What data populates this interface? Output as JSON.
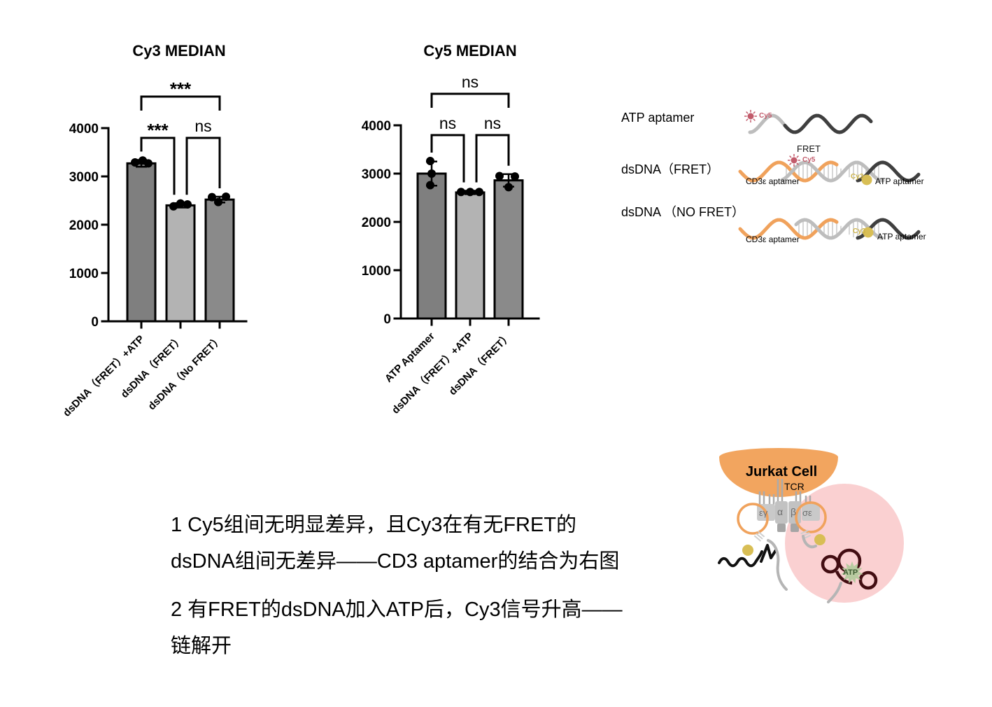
{
  "chart_data": [
    {
      "type": "bar",
      "title": "Cy3 MEDIAN",
      "categories": [
        "dsDNA（FRET）+ATP",
        "dsDNA（FRET）",
        "dsDNA（No FRET）"
      ],
      "values": [
        3270,
        2400,
        2520
      ],
      "errors": [
        70,
        45,
        60
      ],
      "points": [
        [
          3290,
          3330,
          3270
        ],
        [
          2380,
          2440,
          2420
        ],
        [
          2570,
          2580,
          2470
        ]
      ],
      "ylim": [
        0,
        4000
      ],
      "yticks": [
        0,
        1000,
        2000,
        3000,
        4000
      ],
      "xlabel": "",
      "ylabel": "",
      "grid": false,
      "legend": false,
      "bar_colors": [
        "#7F7F7F",
        "#B3B3B3",
        "#8A8A8A"
      ],
      "comparisons": [
        {
          "a": 0,
          "b": 1,
          "label": "***",
          "level": 0,
          "x_offsets": [
            0,
            -9
          ]
        },
        {
          "a": 1,
          "b": 2,
          "label": "ns",
          "level": 0,
          "x_offsets": [
            9,
            0
          ]
        },
        {
          "a": 0,
          "b": 2,
          "label": "***",
          "level": 1,
          "x_offsets": [
            0,
            0
          ]
        }
      ]
    },
    {
      "type": "bar",
      "title": "Cy5 MEDIAN",
      "categories": [
        "ATP Aptamer",
        "dsDNA（FRET）+ATP",
        "dsDNA（FRET）"
      ],
      "values": [
        3000,
        2610,
        2860
      ],
      "errors": [
        250,
        35,
        130
      ],
      "points": [
        [
          3260,
          3000,
          2760
        ],
        [
          2620,
          2620,
          2620
        ],
        [
          2950,
          2940,
          2720
        ]
      ],
      "ylim": [
        0,
        4000
      ],
      "yticks": [
        0,
        1000,
        2000,
        3000,
        4000
      ],
      "xlabel": "",
      "ylabel": "",
      "grid": false,
      "legend": false,
      "bar_colors": [
        "#7F7F7F",
        "#B3B3B3",
        "#8A8A8A"
      ],
      "comparisons": [
        {
          "a": 0,
          "b": 1,
          "label": "ns",
          "level": 0,
          "x_offsets": [
            0,
            -9
          ]
        },
        {
          "a": 1,
          "b": 2,
          "label": "ns",
          "level": 0,
          "x_offsets": [
            9,
            0
          ]
        },
        {
          "a": 0,
          "b": 2,
          "label": "ns",
          "level": 1,
          "x_offsets": [
            0,
            0
          ]
        }
      ]
    }
  ],
  "diagram": {
    "row1_label": "ATP aptamer",
    "row1_cy5": "Cy5",
    "row2_label": "dsDNA（FRET）",
    "row2_fret": "FRET",
    "row2_cy5": "Cy5",
    "row2_cd3": "CD3ε aptamer",
    "row2_cy3": "Cy3",
    "row2_atp": "ATP aptamer",
    "row3_label": "dsDNA （NO FRET）",
    "row3_cd3": "CD3ε aptamer",
    "row3_cy3": "Cy3",
    "row3_atp": "ATP aptamer"
  },
  "jurkat": {
    "cell_label": "Jurkat Cell",
    "tcr_label": "TCR",
    "atp_label": "ATP",
    "subunits": [
      "εγ",
      "α",
      "β",
      "σε"
    ]
  },
  "notes": {
    "note1": "1 Cy5组间无明显差异，且Cy3在有无FRET的\ndsDNA组间无差异——CD3 aptamer的结合为右图",
    "note2": "2 有FRET的dsDNA加入ATP后，Cy3信号升高——\n链解开"
  },
  "colors": {
    "orange_strand": "#F0A25C",
    "dark_strand": "#3F3F3F",
    "gray_strand": "#BDBDBD",
    "cy5": "#C25B6B",
    "cy3": "#D8BE55",
    "cy3_text": "#CDB347",
    "pink_zone": "#FAD0D1",
    "cell_orange": "#F2A55F",
    "atp_green": "#B9CBA1",
    "dark_red": "#420D12"
  }
}
